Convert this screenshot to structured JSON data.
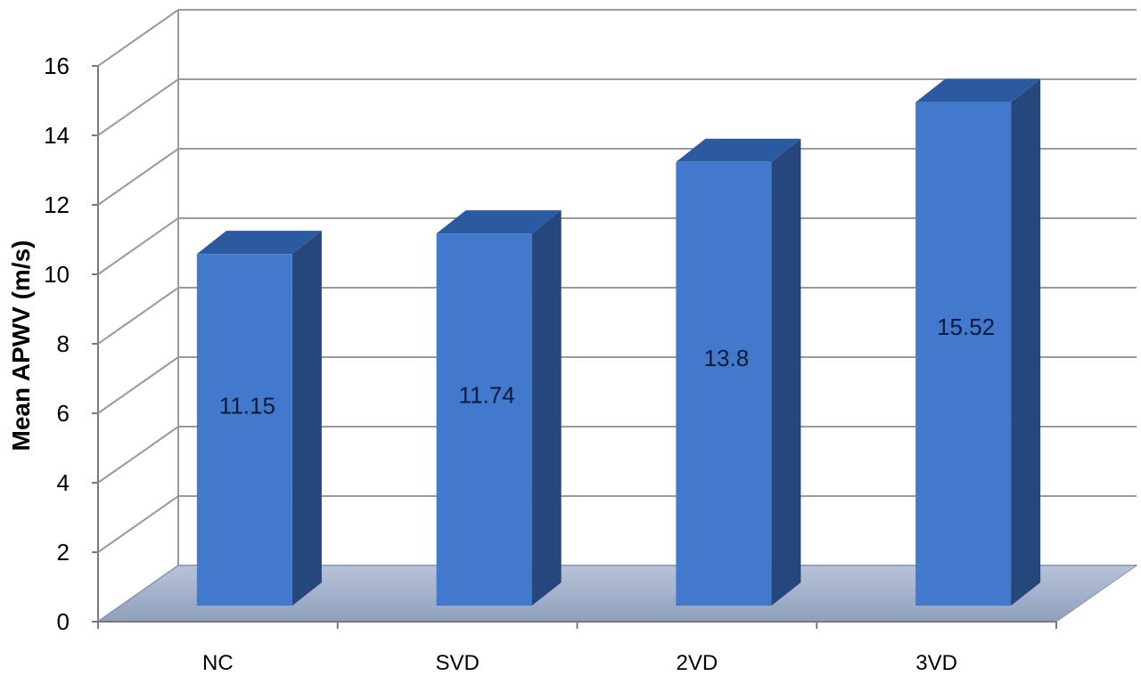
{
  "chart_data": {
    "type": "bar",
    "title": "",
    "xlabel": "",
    "ylabel": "Mean APWV (m/s)",
    "categories": [
      "NC",
      "SVD",
      "2VD",
      "3VD"
    ],
    "values": [
      11.15,
      11.74,
      13.8,
      15.52
    ],
    "data_labels": [
      "11.15",
      "11.74",
      "13.8",
      "15.52"
    ],
    "ylim": [
      0,
      16
    ],
    "yticks": [
      "0",
      "2",
      "4",
      "6",
      "8",
      "10",
      "12",
      "14",
      "16"
    ],
    "grid": true,
    "legend": "none",
    "style": "3d-column",
    "colors": {
      "bar_front": "#4379cc",
      "bar_side": "#26477c",
      "bar_top": "#2c5aa0",
      "floor": "#9aa9c4",
      "grid": "#9a9a9a"
    }
  }
}
